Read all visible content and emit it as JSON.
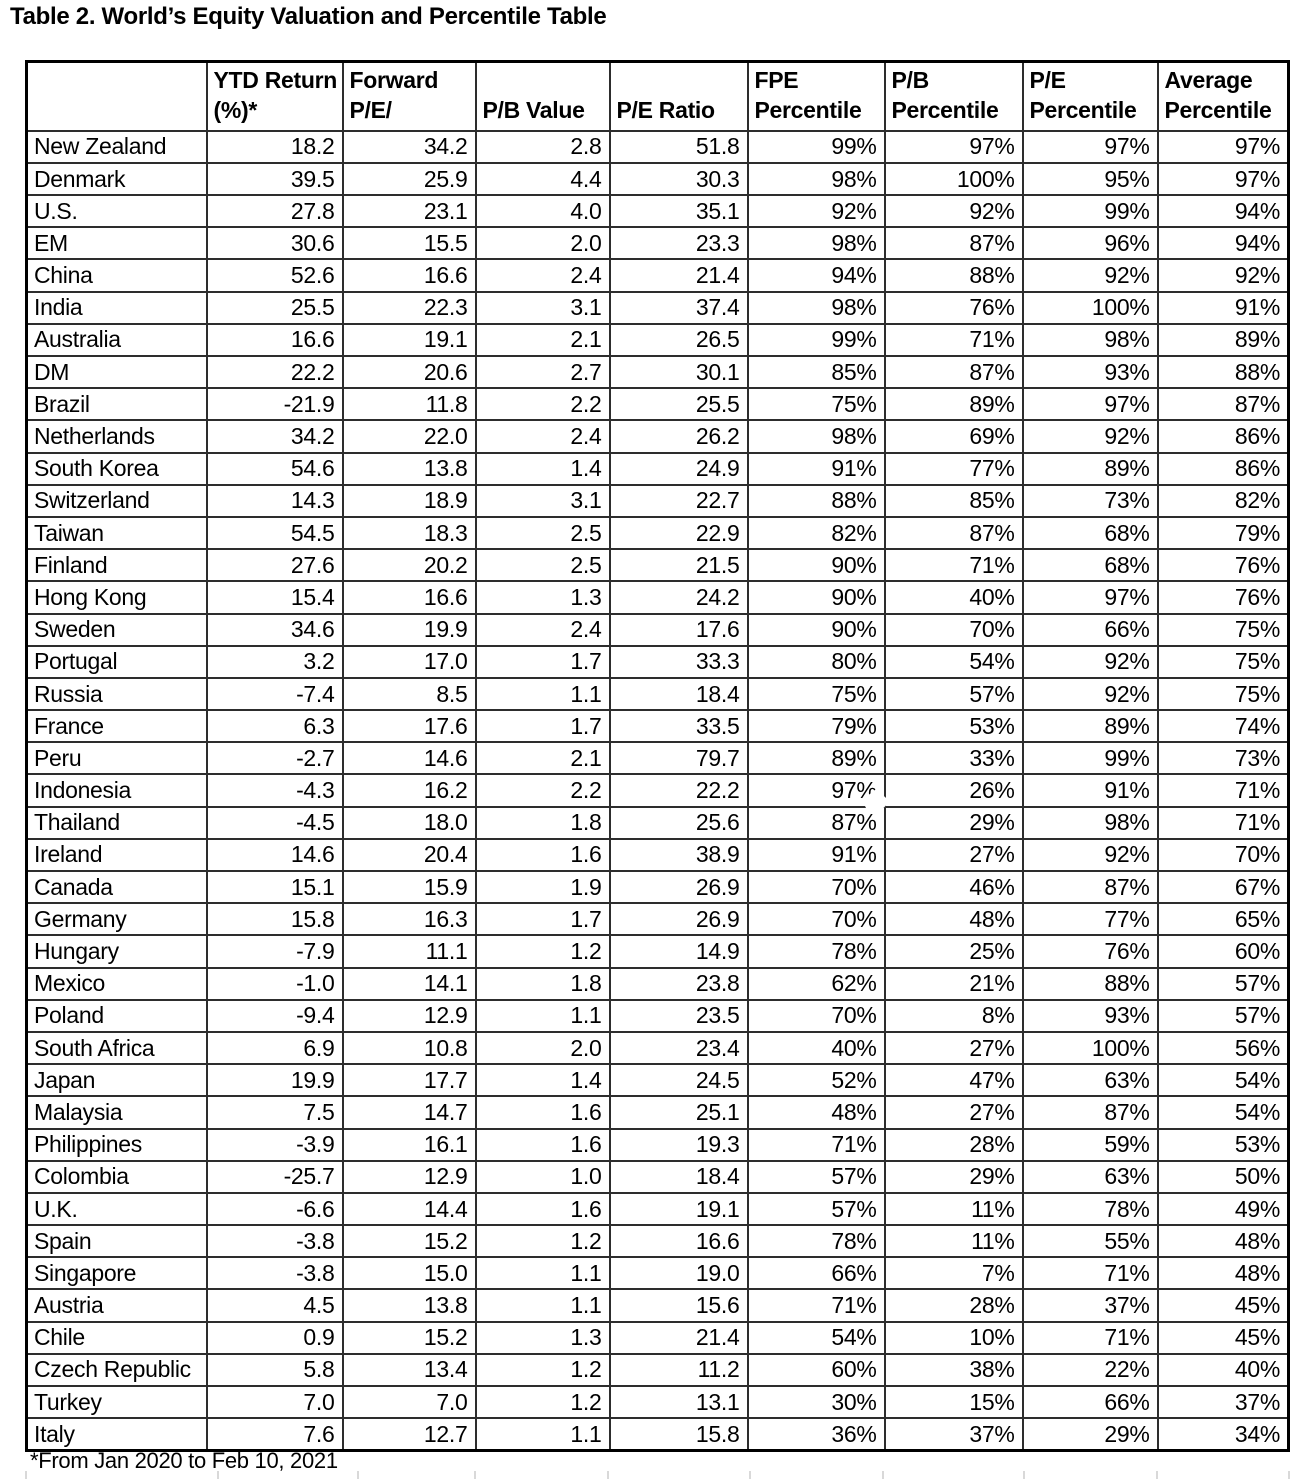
{
  "title": "Table 2. World’s Equity Valuation and Percentile Table",
  "footnote": "*From Jan 2020 to Feb 10, 2021",
  "table": {
    "column_keys": [
      "country",
      "ytd-return",
      "forward-pe",
      "pb-value",
      "pe-ratio",
      "fpe-percentile",
      "pb-percentile",
      "pe-percentile",
      "average-percentile"
    ],
    "headers": [
      [],
      [
        "YTD Return",
        "(%)*"
      ],
      [
        "Forward",
        "P/E/"
      ],
      [
        "P/B Value"
      ],
      [
        "P/E Ratio"
      ],
      [
        "FPE",
        "Percentile"
      ],
      [
        "P/B",
        "Percentile"
      ],
      [
        "P/E",
        "Percentile"
      ],
      [
        "Average",
        "Percentile"
      ]
    ],
    "rows": [
      [
        "New Zealand",
        "18.2",
        "34.2",
        "2.8",
        "51.8",
        "99%",
        "97%",
        "97%",
        "97%"
      ],
      [
        "Denmark",
        "39.5",
        "25.9",
        "4.4",
        "30.3",
        "98%",
        "100%",
        "95%",
        "97%"
      ],
      [
        "U.S.",
        "27.8",
        "23.1",
        "4.0",
        "35.1",
        "92%",
        "92%",
        "99%",
        "94%"
      ],
      [
        "EM",
        "30.6",
        "15.5",
        "2.0",
        "23.3",
        "98%",
        "87%",
        "96%",
        "94%"
      ],
      [
        "China",
        "52.6",
        "16.6",
        "2.4",
        "21.4",
        "94%",
        "88%",
        "92%",
        "92%"
      ],
      [
        "India",
        "25.5",
        "22.3",
        "3.1",
        "37.4",
        "98%",
        "76%",
        "100%",
        "91%"
      ],
      [
        "Australia",
        "16.6",
        "19.1",
        "2.1",
        "26.5",
        "99%",
        "71%",
        "98%",
        "89%"
      ],
      [
        "DM",
        "22.2",
        "20.6",
        "2.7",
        "30.1",
        "85%",
        "87%",
        "93%",
        "88%"
      ],
      [
        "Brazil",
        "-21.9",
        "11.8",
        "2.2",
        "25.5",
        "75%",
        "89%",
        "97%",
        "87%"
      ],
      [
        "Netherlands",
        "34.2",
        "22.0",
        "2.4",
        "26.2",
        "98%",
        "69%",
        "92%",
        "86%"
      ],
      [
        "South Korea",
        "54.6",
        "13.8",
        "1.4",
        "24.9",
        "91%",
        "77%",
        "89%",
        "86%"
      ],
      [
        "Switzerland",
        "14.3",
        "18.9",
        "3.1",
        "22.7",
        "88%",
        "85%",
        "73%",
        "82%"
      ],
      [
        "Taiwan",
        "54.5",
        "18.3",
        "2.5",
        "22.9",
        "82%",
        "87%",
        "68%",
        "79%"
      ],
      [
        "Finland",
        "27.6",
        "20.2",
        "2.5",
        "21.5",
        "90%",
        "71%",
        "68%",
        "76%"
      ],
      [
        "Hong Kong",
        "15.4",
        "16.6",
        "1.3",
        "24.2",
        "90%",
        "40%",
        "97%",
        "76%"
      ],
      [
        "Sweden",
        "34.6",
        "19.9",
        "2.4",
        "17.6",
        "90%",
        "70%",
        "66%",
        "75%"
      ],
      [
        "Portugal",
        "3.2",
        "17.0",
        "1.7",
        "33.3",
        "80%",
        "54%",
        "92%",
        "75%"
      ],
      [
        "Russia",
        "-7.4",
        "8.5",
        "1.1",
        "18.4",
        "75%",
        "57%",
        "92%",
        "75%"
      ],
      [
        "France",
        "6.3",
        "17.6",
        "1.7",
        "33.5",
        "79%",
        "53%",
        "89%",
        "74%"
      ],
      [
        "Peru",
        "-2.7",
        "14.6",
        "2.1",
        "79.7",
        "89%",
        "33%",
        "99%",
        "73%"
      ],
      [
        "Indonesia",
        "-4.3",
        "16.2",
        "2.2",
        "22.2",
        "97%",
        "26%",
        "91%",
        "71%"
      ],
      [
        "Thailand",
        "-4.5",
        "18.0",
        "1.8",
        "25.6",
        "87%",
        "29%",
        "98%",
        "71%"
      ],
      [
        "Ireland",
        "14.6",
        "20.4",
        "1.6",
        "38.9",
        "91%",
        "27%",
        "92%",
        "70%"
      ],
      [
        "Canada",
        "15.1",
        "15.9",
        "1.9",
        "26.9",
        "70%",
        "46%",
        "87%",
        "67%"
      ],
      [
        "Germany",
        "15.8",
        "16.3",
        "1.7",
        "26.9",
        "70%",
        "48%",
        "77%",
        "65%"
      ],
      [
        "Hungary",
        "-7.9",
        "11.1",
        "1.2",
        "14.9",
        "78%",
        "25%",
        "76%",
        "60%"
      ],
      [
        "Mexico",
        "-1.0",
        "14.1",
        "1.8",
        "23.8",
        "62%",
        "21%",
        "88%",
        "57%"
      ],
      [
        "Poland",
        "-9.4",
        "12.9",
        "1.1",
        "23.5",
        "70%",
        "8%",
        "93%",
        "57%"
      ],
      [
        "South Africa",
        "6.9",
        "10.8",
        "2.0",
        "23.4",
        "40%",
        "27%",
        "100%",
        "56%"
      ],
      [
        "Japan",
        "19.9",
        "17.7",
        "1.4",
        "24.5",
        "52%",
        "47%",
        "63%",
        "54%"
      ],
      [
        "Malaysia",
        "7.5",
        "14.7",
        "1.6",
        "25.1",
        "48%",
        "27%",
        "87%",
        "54%"
      ],
      [
        "Philippines",
        "-3.9",
        "16.1",
        "1.6",
        "19.3",
        "71%",
        "28%",
        "59%",
        "53%"
      ],
      [
        "Colombia",
        "-25.7",
        "12.9",
        "1.0",
        "18.4",
        "57%",
        "29%",
        "63%",
        "50%"
      ],
      [
        "U.K.",
        "-6.6",
        "14.4",
        "1.6",
        "19.1",
        "57%",
        "11%",
        "78%",
        "49%"
      ],
      [
        "Spain",
        "-3.8",
        "15.2",
        "1.2",
        "16.6",
        "78%",
        "11%",
        "55%",
        "48%"
      ],
      [
        "Singapore",
        "-3.8",
        "15.0",
        "1.1",
        "19.0",
        "66%",
        "7%",
        "71%",
        "48%"
      ],
      [
        "Austria",
        "4.5",
        "13.8",
        "1.1",
        "15.6",
        "71%",
        "28%",
        "37%",
        "45%"
      ],
      [
        "Chile",
        "0.9",
        "15.2",
        "1.3",
        "21.4",
        "54%",
        "10%",
        "71%",
        "45%"
      ],
      [
        "Czech Republic",
        "5.8",
        "13.4",
        "1.2",
        "11.2",
        "60%",
        "38%",
        "22%",
        "40%"
      ],
      [
        "Turkey",
        "7.0",
        "7.0",
        "1.2",
        "13.1",
        "30%",
        "15%",
        "66%",
        "37%"
      ],
      [
        "Italy",
        "7.6",
        "12.7",
        "1.1",
        "15.8",
        "36%",
        "37%",
        "29%",
        "34%"
      ]
    ]
  }
}
